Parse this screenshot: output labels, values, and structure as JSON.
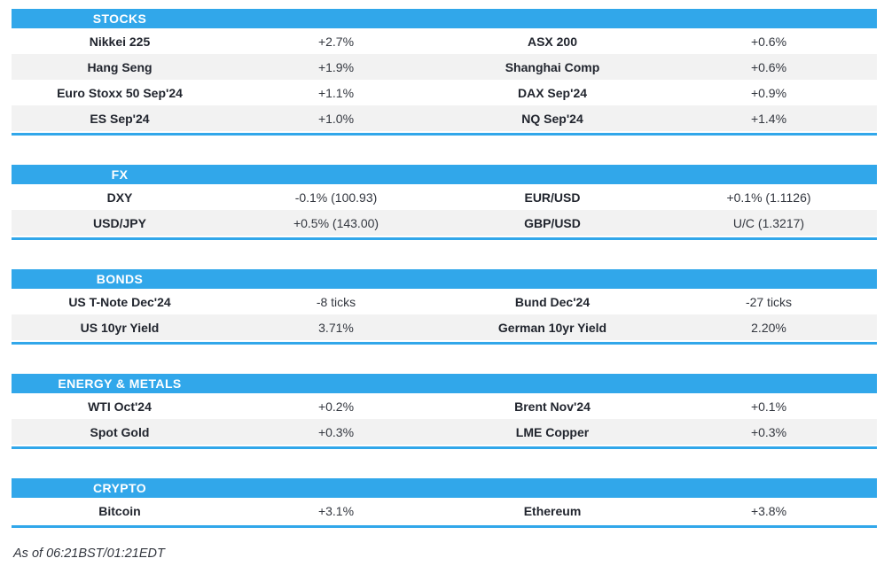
{
  "colors": {
    "header_bg": "#31a7ea",
    "row_alt_bg": "#f2f2f2",
    "accent_blue": "#31a7ea",
    "header_text": "#ffffff",
    "label_text": "#21252e",
    "value_text": "#33373f"
  },
  "sections": [
    {
      "title": "STOCKS",
      "rows": [
        {
          "left_label": "Nikkei 225",
          "left_value": "+2.7%",
          "right_label": "ASX 200",
          "right_value": "+0.6%"
        },
        {
          "left_label": "Hang Seng",
          "left_value": "+1.9%",
          "right_label": "Shanghai Comp",
          "right_value": "+0.6%"
        },
        {
          "left_label": "Euro Stoxx 50 Sep'24",
          "left_value": "+1.1%",
          "right_label": "DAX Sep'24",
          "right_value": "+0.9%"
        },
        {
          "left_label": "ES Sep'24",
          "left_value": "+1.0%",
          "right_label": "NQ Sep'24",
          "right_value": "+1.4%"
        }
      ]
    },
    {
      "title": "FX",
      "rows": [
        {
          "left_label": "DXY",
          "left_value": "-0.1% (100.93)",
          "right_label": "EUR/USD",
          "right_value": "+0.1% (1.1126)"
        },
        {
          "left_label": "USD/JPY",
          "left_value": "+0.5% (143.00)",
          "right_label": "GBP/USD",
          "right_value": "U/C (1.3217)"
        }
      ]
    },
    {
      "title": "BONDS",
      "rows": [
        {
          "left_label": "US T-Note Dec'24",
          "left_value": "-8 ticks",
          "right_label": "Bund Dec'24",
          "right_value": "-27 ticks"
        },
        {
          "left_label": "US 10yr Yield",
          "left_value": "3.71%",
          "right_label": "German 10yr Yield",
          "right_value": "2.20%"
        }
      ]
    },
    {
      "title": "ENERGY & METALS",
      "rows": [
        {
          "left_label": "WTI Oct'24",
          "left_value": "+0.2%",
          "right_label": "Brent Nov'24",
          "right_value": "+0.1%"
        },
        {
          "left_label": "Spot Gold",
          "left_value": "+0.3%",
          "right_label": "LME Copper",
          "right_value": "+0.3%"
        }
      ]
    },
    {
      "title": "CRYPTO",
      "rows": [
        {
          "left_label": "Bitcoin",
          "left_value": "+3.1%",
          "right_label": "Ethereum",
          "right_value": "+3.8%"
        }
      ]
    }
  ],
  "footer": {
    "timestamp_note": "As of 06:21BST/01:21EDT"
  }
}
